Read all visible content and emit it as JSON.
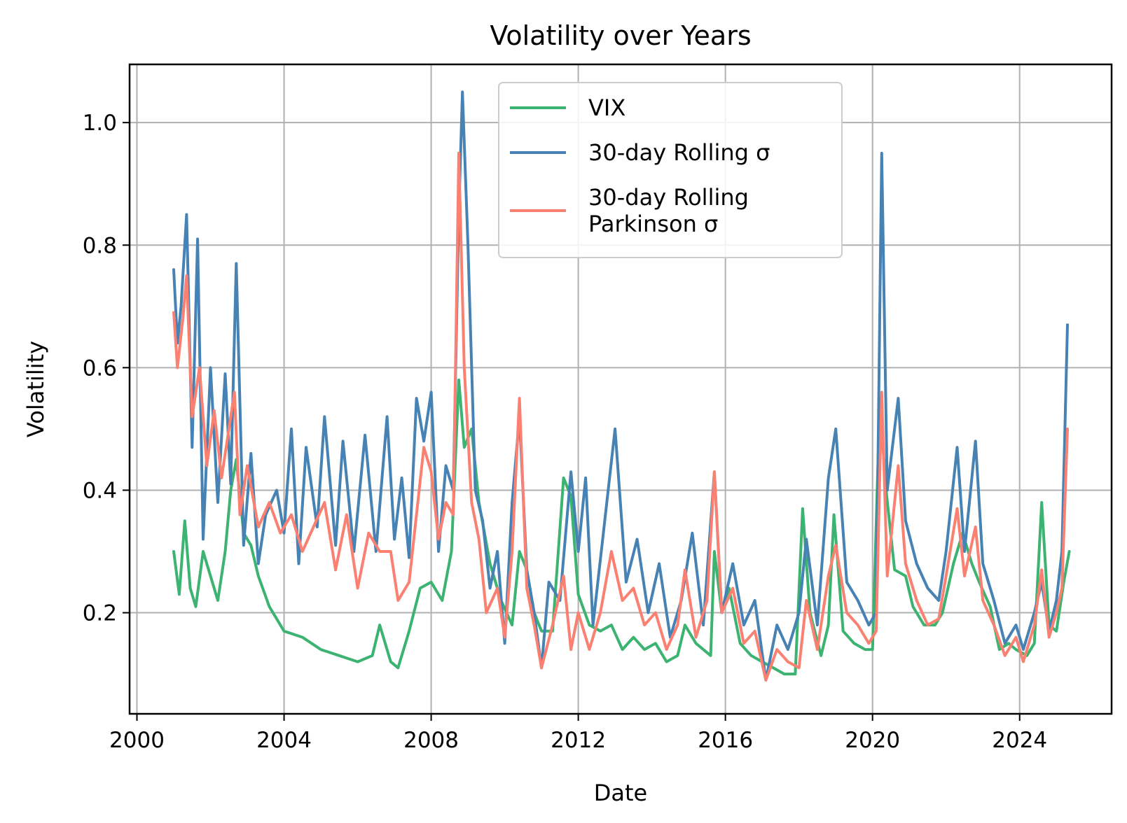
{
  "chart_data": {
    "type": "line",
    "title": "Volatility over Years",
    "xlabel": "Date",
    "ylabel": "Volatility",
    "xlim": [
      1999.8,
      2026.5
    ],
    "ylim": [
      0.035,
      1.095
    ],
    "x_ticks": [
      2000,
      2004,
      2008,
      2012,
      2016,
      2020,
      2024
    ],
    "x_tick_labels": [
      "2000",
      "2004",
      "2008",
      "2012",
      "2016",
      "2020",
      "2024"
    ],
    "y_ticks": [
      0.2,
      0.4,
      0.6,
      0.8,
      1.0
    ],
    "y_tick_labels": [
      "0.2",
      "0.4",
      "0.6",
      "0.8",
      "1.0"
    ],
    "grid": true,
    "legend_position": "top-center",
    "series": [
      {
        "name": "VIX",
        "color": "#3cb371",
        "points": [
          [
            2001.0,
            0.3
          ],
          [
            2001.15,
            0.23
          ],
          [
            2001.3,
            0.35
          ],
          [
            2001.45,
            0.24
          ],
          [
            2001.6,
            0.21
          ],
          [
            2001.8,
            0.3
          ],
          [
            2002.0,
            0.26
          ],
          [
            2002.2,
            0.22
          ],
          [
            2002.4,
            0.3
          ],
          [
            2002.55,
            0.4
          ],
          [
            2002.7,
            0.45
          ],
          [
            2002.9,
            0.33
          ],
          [
            2003.1,
            0.31
          ],
          [
            2003.3,
            0.26
          ],
          [
            2003.6,
            0.21
          ],
          [
            2004.0,
            0.17
          ],
          [
            2004.5,
            0.16
          ],
          [
            2005.0,
            0.14
          ],
          [
            2005.5,
            0.13
          ],
          [
            2006.0,
            0.12
          ],
          [
            2006.4,
            0.13
          ],
          [
            2006.6,
            0.18
          ],
          [
            2006.9,
            0.12
          ],
          [
            2007.1,
            0.11
          ],
          [
            2007.4,
            0.17
          ],
          [
            2007.7,
            0.24
          ],
          [
            2008.0,
            0.25
          ],
          [
            2008.3,
            0.22
          ],
          [
            2008.55,
            0.3
          ],
          [
            2008.75,
            0.58
          ],
          [
            2008.9,
            0.47
          ],
          [
            2009.1,
            0.5
          ],
          [
            2009.3,
            0.38
          ],
          [
            2009.6,
            0.28
          ],
          [
            2009.9,
            0.22
          ],
          [
            2010.2,
            0.18
          ],
          [
            2010.4,
            0.3
          ],
          [
            2010.6,
            0.27
          ],
          [
            2010.8,
            0.2
          ],
          [
            2011.0,
            0.17
          ],
          [
            2011.3,
            0.17
          ],
          [
            2011.6,
            0.42
          ],
          [
            2011.8,
            0.39
          ],
          [
            2012.0,
            0.23
          ],
          [
            2012.3,
            0.18
          ],
          [
            2012.6,
            0.17
          ],
          [
            2012.9,
            0.18
          ],
          [
            2013.2,
            0.14
          ],
          [
            2013.5,
            0.16
          ],
          [
            2013.8,
            0.14
          ],
          [
            2014.1,
            0.15
          ],
          [
            2014.4,
            0.12
          ],
          [
            2014.7,
            0.13
          ],
          [
            2014.9,
            0.18
          ],
          [
            2015.2,
            0.15
          ],
          [
            2015.6,
            0.13
          ],
          [
            2015.7,
            0.3
          ],
          [
            2015.9,
            0.2
          ],
          [
            2016.1,
            0.24
          ],
          [
            2016.4,
            0.15
          ],
          [
            2016.7,
            0.13
          ],
          [
            2017.0,
            0.12
          ],
          [
            2017.3,
            0.11
          ],
          [
            2017.6,
            0.1
          ],
          [
            2017.9,
            0.1
          ],
          [
            2018.1,
            0.37
          ],
          [
            2018.3,
            0.2
          ],
          [
            2018.6,
            0.13
          ],
          [
            2018.8,
            0.18
          ],
          [
            2018.95,
            0.36
          ],
          [
            2019.2,
            0.17
          ],
          [
            2019.5,
            0.15
          ],
          [
            2019.8,
            0.14
          ],
          [
            2020.0,
            0.14
          ],
          [
            2020.2,
            0.55
          ],
          [
            2020.35,
            0.41
          ],
          [
            2020.6,
            0.27
          ],
          [
            2020.9,
            0.26
          ],
          [
            2021.1,
            0.21
          ],
          [
            2021.4,
            0.18
          ],
          [
            2021.7,
            0.18
          ],
          [
            2021.9,
            0.2
          ],
          [
            2022.2,
            0.28
          ],
          [
            2022.45,
            0.33
          ],
          [
            2022.7,
            0.28
          ],
          [
            2022.9,
            0.25
          ],
          [
            2023.2,
            0.21
          ],
          [
            2023.45,
            0.14
          ],
          [
            2023.7,
            0.15
          ],
          [
            2023.9,
            0.14
          ],
          [
            2024.2,
            0.13
          ],
          [
            2024.4,
            0.15
          ],
          [
            2024.6,
            0.38
          ],
          [
            2024.8,
            0.18
          ],
          [
            2025.0,
            0.17
          ],
          [
            2025.2,
            0.25
          ],
          [
            2025.35,
            0.3
          ]
        ]
      },
      {
        "name": "30-day Rolling σ",
        "color": "#4682b4",
        "points": [
          [
            2001.0,
            0.76
          ],
          [
            2001.1,
            0.64
          ],
          [
            2001.2,
            0.7
          ],
          [
            2001.35,
            0.85
          ],
          [
            2001.5,
            0.47
          ],
          [
            2001.65,
            0.81
          ],
          [
            2001.8,
            0.32
          ],
          [
            2002.0,
            0.6
          ],
          [
            2002.2,
            0.38
          ],
          [
            2002.4,
            0.59
          ],
          [
            2002.55,
            0.41
          ],
          [
            2002.7,
            0.77
          ],
          [
            2002.9,
            0.31
          ],
          [
            2003.1,
            0.46
          ],
          [
            2003.3,
            0.28
          ],
          [
            2003.5,
            0.36
          ],
          [
            2003.8,
            0.4
          ],
          [
            2004.0,
            0.33
          ],
          [
            2004.2,
            0.5
          ],
          [
            2004.4,
            0.28
          ],
          [
            2004.6,
            0.47
          ],
          [
            2004.9,
            0.34
          ],
          [
            2005.1,
            0.52
          ],
          [
            2005.4,
            0.31
          ],
          [
            2005.6,
            0.48
          ],
          [
            2005.9,
            0.3
          ],
          [
            2006.2,
            0.49
          ],
          [
            2006.5,
            0.3
          ],
          [
            2006.8,
            0.52
          ],
          [
            2007.0,
            0.32
          ],
          [
            2007.2,
            0.42
          ],
          [
            2007.4,
            0.29
          ],
          [
            2007.6,
            0.55
          ],
          [
            2007.8,
            0.48
          ],
          [
            2008.0,
            0.56
          ],
          [
            2008.2,
            0.3
          ],
          [
            2008.4,
            0.44
          ],
          [
            2008.6,
            0.4
          ],
          [
            2008.75,
            0.85
          ],
          [
            2008.85,
            1.05
          ],
          [
            2009.0,
            0.8
          ],
          [
            2009.2,
            0.4
          ],
          [
            2009.4,
            0.35
          ],
          [
            2009.6,
            0.24
          ],
          [
            2009.8,
            0.3
          ],
          [
            2010.0,
            0.15
          ],
          [
            2010.2,
            0.38
          ],
          [
            2010.4,
            0.52
          ],
          [
            2010.6,
            0.27
          ],
          [
            2010.8,
            0.2
          ],
          [
            2011.0,
            0.11
          ],
          [
            2011.2,
            0.25
          ],
          [
            2011.5,
            0.22
          ],
          [
            2011.8,
            0.43
          ],
          [
            2012.0,
            0.3
          ],
          [
            2012.2,
            0.42
          ],
          [
            2012.4,
            0.18
          ],
          [
            2012.7,
            0.34
          ],
          [
            2013.0,
            0.5
          ],
          [
            2013.3,
            0.25
          ],
          [
            2013.6,
            0.32
          ],
          [
            2013.9,
            0.2
          ],
          [
            2014.2,
            0.28
          ],
          [
            2014.5,
            0.16
          ],
          [
            2014.8,
            0.22
          ],
          [
            2015.1,
            0.33
          ],
          [
            2015.4,
            0.18
          ],
          [
            2015.7,
            0.43
          ],
          [
            2015.9,
            0.2
          ],
          [
            2016.2,
            0.28
          ],
          [
            2016.5,
            0.18
          ],
          [
            2016.8,
            0.22
          ],
          [
            2017.1,
            0.09
          ],
          [
            2017.4,
            0.18
          ],
          [
            2017.7,
            0.14
          ],
          [
            2018.0,
            0.2
          ],
          [
            2018.2,
            0.32
          ],
          [
            2018.5,
            0.18
          ],
          [
            2018.8,
            0.42
          ],
          [
            2019.0,
            0.5
          ],
          [
            2019.3,
            0.25
          ],
          [
            2019.6,
            0.22
          ],
          [
            2019.9,
            0.18
          ],
          [
            2020.1,
            0.2
          ],
          [
            2020.25,
            0.95
          ],
          [
            2020.4,
            0.4
          ],
          [
            2020.7,
            0.55
          ],
          [
            2020.9,
            0.35
          ],
          [
            2021.2,
            0.28
          ],
          [
            2021.5,
            0.24
          ],
          [
            2021.8,
            0.22
          ],
          [
            2022.0,
            0.3
          ],
          [
            2022.3,
            0.47
          ],
          [
            2022.5,
            0.3
          ],
          [
            2022.8,
            0.48
          ],
          [
            2023.0,
            0.28
          ],
          [
            2023.3,
            0.22
          ],
          [
            2023.6,
            0.15
          ],
          [
            2023.9,
            0.18
          ],
          [
            2024.1,
            0.14
          ],
          [
            2024.4,
            0.2
          ],
          [
            2024.6,
            0.25
          ],
          [
            2024.8,
            0.17
          ],
          [
            2025.0,
            0.22
          ],
          [
            2025.15,
            0.3
          ],
          [
            2025.3,
            0.67
          ]
        ]
      },
      {
        "name": "30-day Rolling\nParkinson σ",
        "color": "#fa8072",
        "points": [
          [
            2001.0,
            0.69
          ],
          [
            2001.1,
            0.6
          ],
          [
            2001.25,
            0.68
          ],
          [
            2001.35,
            0.75
          ],
          [
            2001.5,
            0.52
          ],
          [
            2001.7,
            0.6
          ],
          [
            2001.9,
            0.44
          ],
          [
            2002.1,
            0.53
          ],
          [
            2002.3,
            0.42
          ],
          [
            2002.5,
            0.5
          ],
          [
            2002.65,
            0.56
          ],
          [
            2002.8,
            0.36
          ],
          [
            2003.0,
            0.44
          ],
          [
            2003.3,
            0.34
          ],
          [
            2003.6,
            0.38
          ],
          [
            2003.9,
            0.33
          ],
          [
            2004.2,
            0.36
          ],
          [
            2004.5,
            0.3
          ],
          [
            2004.8,
            0.34
          ],
          [
            2005.1,
            0.38
          ],
          [
            2005.4,
            0.27
          ],
          [
            2005.7,
            0.36
          ],
          [
            2006.0,
            0.24
          ],
          [
            2006.3,
            0.33
          ],
          [
            2006.6,
            0.3
          ],
          [
            2006.9,
            0.3
          ],
          [
            2007.1,
            0.22
          ],
          [
            2007.4,
            0.25
          ],
          [
            2007.6,
            0.36
          ],
          [
            2007.8,
            0.47
          ],
          [
            2008.0,
            0.43
          ],
          [
            2008.2,
            0.32
          ],
          [
            2008.4,
            0.38
          ],
          [
            2008.6,
            0.36
          ],
          [
            2008.75,
            0.95
          ],
          [
            2008.9,
            0.6
          ],
          [
            2009.1,
            0.38
          ],
          [
            2009.3,
            0.32
          ],
          [
            2009.5,
            0.2
          ],
          [
            2009.8,
            0.24
          ],
          [
            2010.0,
            0.16
          ],
          [
            2010.2,
            0.3
          ],
          [
            2010.4,
            0.55
          ],
          [
            2010.6,
            0.24
          ],
          [
            2010.8,
            0.18
          ],
          [
            2011.0,
            0.11
          ],
          [
            2011.3,
            0.18
          ],
          [
            2011.6,
            0.26
          ],
          [
            2011.8,
            0.14
          ],
          [
            2012.0,
            0.2
          ],
          [
            2012.3,
            0.14
          ],
          [
            2012.6,
            0.2
          ],
          [
            2012.9,
            0.3
          ],
          [
            2013.2,
            0.22
          ],
          [
            2013.5,
            0.24
          ],
          [
            2013.8,
            0.18
          ],
          [
            2014.1,
            0.2
          ],
          [
            2014.4,
            0.14
          ],
          [
            2014.7,
            0.18
          ],
          [
            2014.9,
            0.27
          ],
          [
            2015.2,
            0.16
          ],
          [
            2015.5,
            0.22
          ],
          [
            2015.7,
            0.43
          ],
          [
            2015.9,
            0.2
          ],
          [
            2016.2,
            0.24
          ],
          [
            2016.5,
            0.15
          ],
          [
            2016.8,
            0.17
          ],
          [
            2017.1,
            0.09
          ],
          [
            2017.4,
            0.14
          ],
          [
            2017.7,
            0.12
          ],
          [
            2018.0,
            0.11
          ],
          [
            2018.2,
            0.22
          ],
          [
            2018.5,
            0.14
          ],
          [
            2018.8,
            0.26
          ],
          [
            2019.0,
            0.31
          ],
          [
            2019.3,
            0.2
          ],
          [
            2019.6,
            0.18
          ],
          [
            2019.9,
            0.15
          ],
          [
            2020.1,
            0.17
          ],
          [
            2020.25,
            0.56
          ],
          [
            2020.4,
            0.26
          ],
          [
            2020.7,
            0.44
          ],
          [
            2020.9,
            0.28
          ],
          [
            2021.2,
            0.22
          ],
          [
            2021.5,
            0.18
          ],
          [
            2021.8,
            0.19
          ],
          [
            2022.0,
            0.26
          ],
          [
            2022.3,
            0.37
          ],
          [
            2022.5,
            0.26
          ],
          [
            2022.8,
            0.34
          ],
          [
            2023.0,
            0.22
          ],
          [
            2023.3,
            0.18
          ],
          [
            2023.6,
            0.13
          ],
          [
            2023.9,
            0.16
          ],
          [
            2024.1,
            0.12
          ],
          [
            2024.4,
            0.18
          ],
          [
            2024.6,
            0.27
          ],
          [
            2024.8,
            0.16
          ],
          [
            2025.0,
            0.2
          ],
          [
            2025.15,
            0.24
          ],
          [
            2025.3,
            0.5
          ]
        ]
      }
    ]
  }
}
